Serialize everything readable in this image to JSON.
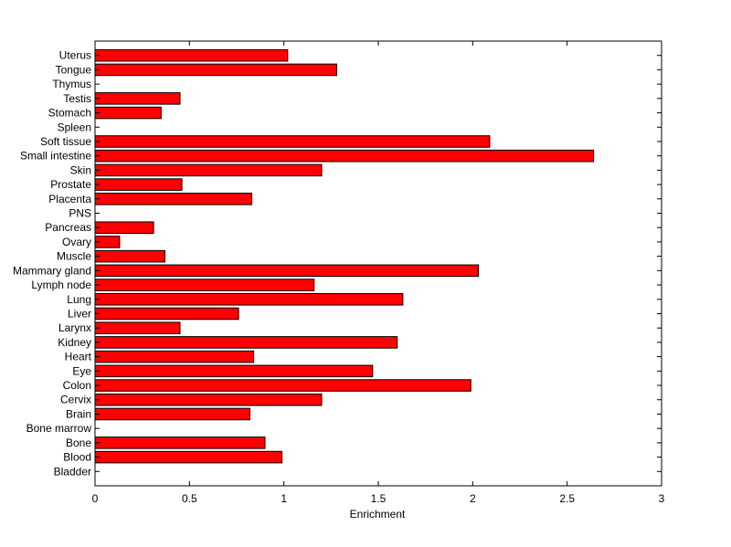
{
  "chart_data": {
    "type": "bar",
    "orientation": "horizontal",
    "categories": [
      "Bladder",
      "Blood",
      "Bone",
      "Bone marrow",
      "Brain",
      "Cervix",
      "Colon",
      "Eye",
      "Heart",
      "Kidney",
      "Larynx",
      "Liver",
      "Lung",
      "Lymph node",
      "Mammary gland",
      "Muscle",
      "Ovary",
      "Pancreas",
      "PNS",
      "Placenta",
      "Prostate",
      "Skin",
      "Small intestine",
      "Soft tissue",
      "Spleen",
      "Stomach",
      "Testis",
      "Thymus",
      "Tongue",
      "Uterus"
    ],
    "values": [
      0,
      0.99,
      0.9,
      0,
      0.82,
      1.2,
      1.99,
      1.47,
      0.84,
      1.6,
      0.45,
      0.76,
      1.63,
      1.16,
      2.03,
      0.37,
      0.13,
      0.31,
      0,
      0.83,
      0.46,
      1.2,
      2.64,
      2.09,
      0,
      0.35,
      0.45,
      0,
      1.28,
      1.02
    ],
    "xlabel": "Enrichment",
    "ylabel": "",
    "title": "",
    "xlim": [
      0,
      3
    ],
    "xticks": [
      0,
      0.5,
      1,
      1.5,
      2,
      2.5,
      3
    ],
    "xtick_labels": [
      "0",
      "0.5",
      "1",
      "1.5",
      "2",
      "2.5",
      "3"
    ],
    "grid": false,
    "bar_color": "#ff0000",
    "bar_edge_color": "#000000"
  }
}
